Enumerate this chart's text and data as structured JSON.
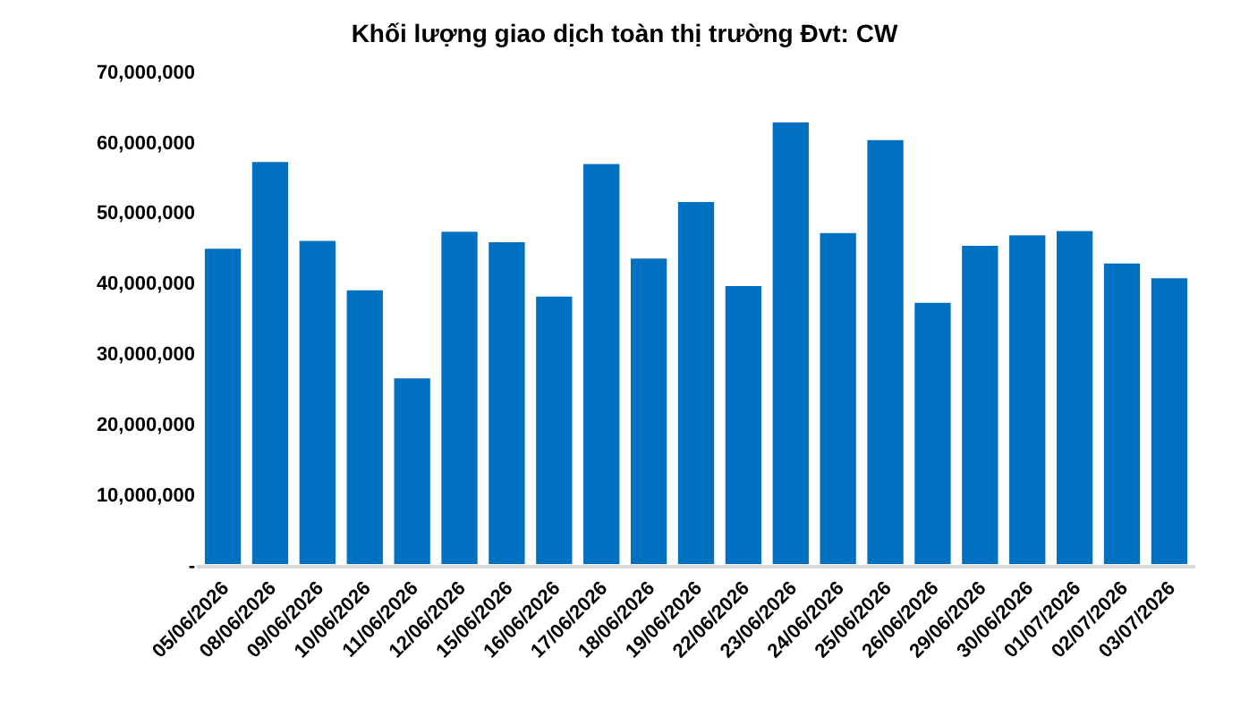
{
  "chart_data": {
    "type": "bar",
    "title": "Khối lượng giao dịch toàn thị trường Đvt: CW",
    "categories": [
      "05/06/2026",
      "08/06/2026",
      "09/06/2026",
      "10/06/2026",
      "11/06/2026",
      "12/06/2026",
      "15/06/2026",
      "16/06/2026",
      "17/06/2026",
      "18/06/2026",
      "19/06/2026",
      "22/06/2026",
      "23/06/2026",
      "24/06/2026",
      "25/06/2026",
      "26/06/2026",
      "29/06/2026",
      "30/06/2026",
      "01/07/2026",
      "02/07/2026",
      "03/07/2026"
    ],
    "values": [
      45000000,
      57300000,
      46100000,
      39100000,
      26600000,
      47400000,
      45900000,
      38200000,
      57000000,
      43600000,
      51600000,
      39700000,
      62900000,
      47200000,
      60400000,
      37300000,
      45400000,
      46900000,
      47500000,
      42900000,
      40800000
    ],
    "color": "#0070c0",
    "ylim": [
      0,
      70000000
    ],
    "yticks": [
      {
        "value": 0,
        "label": "-"
      },
      {
        "value": 10000000,
        "label": "10,000,000"
      },
      {
        "value": 20000000,
        "label": "20,000,000"
      },
      {
        "value": 30000000,
        "label": "30,000,000"
      },
      {
        "value": 40000000,
        "label": "40,000,000"
      },
      {
        "value": 50000000,
        "label": "50,000,000"
      },
      {
        "value": 60000000,
        "label": "60,000,000"
      },
      {
        "value": 70000000,
        "label": "70,000,000"
      }
    ],
    "grid": false
  }
}
